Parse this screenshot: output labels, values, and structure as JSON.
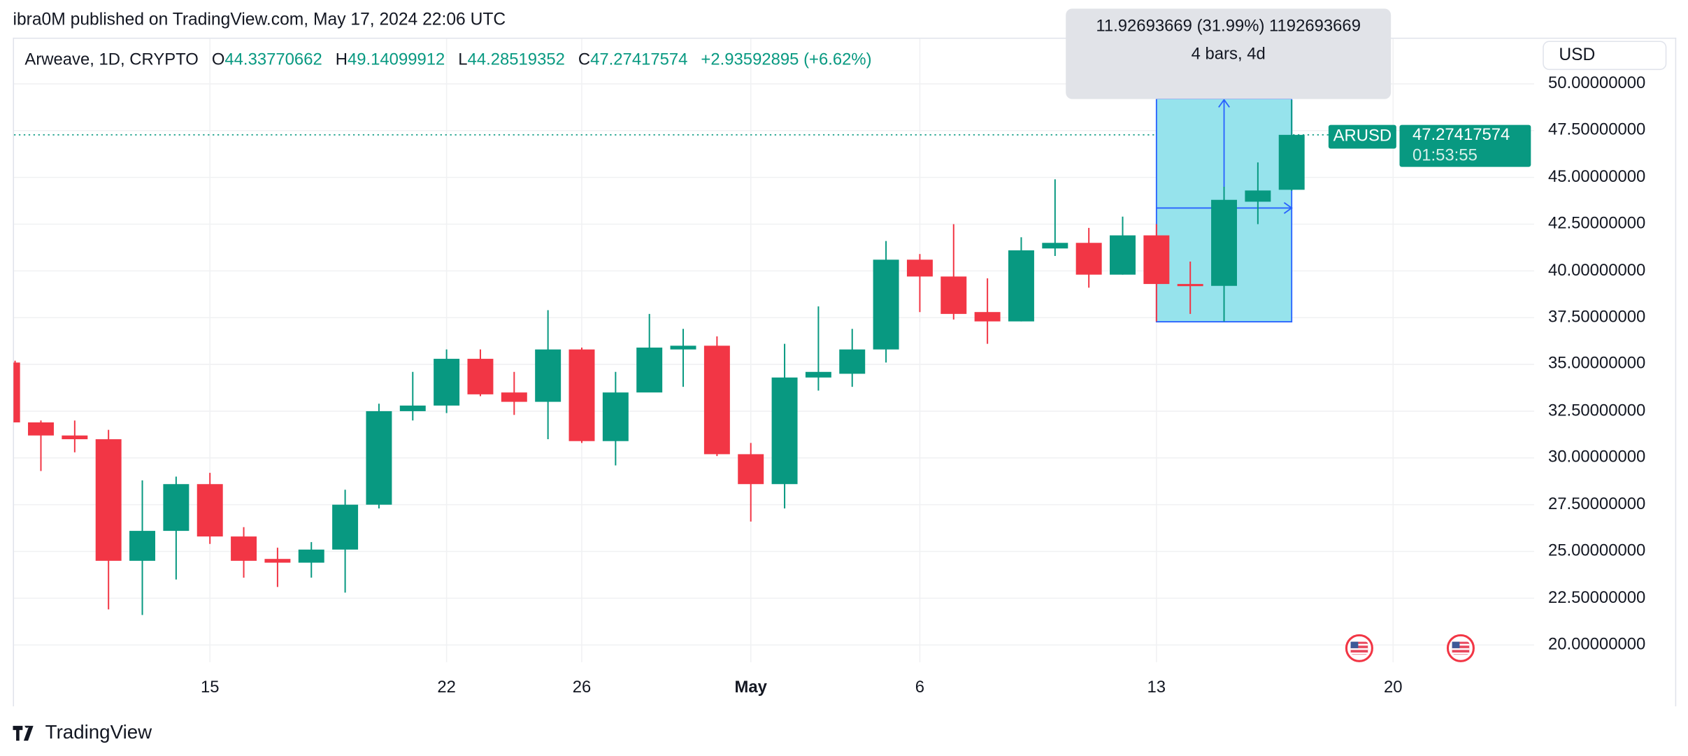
{
  "published": "ibra0M published on TradingView.com, May 17, 2024 22:06 UTC",
  "legend": {
    "symbol_desc": "Arweave, 1D, CRYPTO",
    "open_label": "O",
    "open": "44.33770662",
    "high_label": "H",
    "high": "49.14099912",
    "low_label": "L",
    "low": "44.28519352",
    "close_label": "C",
    "close": "47.27417574",
    "change": "+2.93592895 (+6.62%)"
  },
  "currency_button": "USD",
  "price_tag": {
    "symbol": "ARUSD",
    "price": "47.27417574",
    "countdown": "01:53:55"
  },
  "measure_tooltip": {
    "line1": "11.92693669 (31.99%) 1192693669",
    "line2": "4 bars, 4d"
  },
  "brand": "TradingView",
  "colors": {
    "up": "#089981",
    "down": "#F23645",
    "measure_fill": "#96E3EC",
    "measure_line": "#2962FF",
    "grid": "#F0F1F3"
  },
  "icons": {
    "holiday": "us-flag-icon",
    "logo": "tradingview-logo-icon"
  },
  "chart_data": {
    "type": "candlestick",
    "title": "",
    "y_axis": {
      "ticks": [
        "20.00000000",
        "22.50000000",
        "25.00000000",
        "27.50000000",
        "30.00000000",
        "32.50000000",
        "35.00000000",
        "37.50000000",
        "40.00000000",
        "42.50000000",
        "45.00000000",
        "47.50000000",
        "50.00000000"
      ],
      "range": [
        18.5,
        50.5
      ],
      "side": "right"
    },
    "x_axis": {
      "ticks": [
        {
          "date": "2024-04-15",
          "label": "15"
        },
        {
          "date": "2024-04-22",
          "label": "22"
        },
        {
          "date": "2024-04-26",
          "label": "26"
        },
        {
          "date": "2024-05-01",
          "label": "May",
          "bold": true
        },
        {
          "date": "2024-05-06",
          "label": "6"
        },
        {
          "date": "2024-05-13",
          "label": "13"
        },
        {
          "date": "2024-05-20",
          "label": "20"
        }
      ]
    },
    "grid": true,
    "last_price": 47.27417574,
    "candles": [
      {
        "d": "2024-04-09",
        "o": 35.1,
        "h": 35.2,
        "l": 31.9,
        "c": 31.9
      },
      {
        "d": "2024-04-10",
        "o": 31.9,
        "h": 32.0,
        "l": 29.3,
        "c": 31.2
      },
      {
        "d": "2024-04-11",
        "o": 31.2,
        "h": 32.0,
        "l": 30.3,
        "c": 31.0
      },
      {
        "d": "2024-04-12",
        "o": 31.0,
        "h": 31.5,
        "l": 21.9,
        "c": 24.5
      },
      {
        "d": "2024-04-13",
        "o": 24.5,
        "h": 28.8,
        "l": 21.6,
        "c": 26.1
      },
      {
        "d": "2024-04-14",
        "o": 26.1,
        "h": 29.0,
        "l": 23.5,
        "c": 28.6
      },
      {
        "d": "2024-04-15",
        "o": 28.6,
        "h": 29.2,
        "l": 25.4,
        "c": 25.8
      },
      {
        "d": "2024-04-16",
        "o": 25.8,
        "h": 26.3,
        "l": 23.6,
        "c": 24.5
      },
      {
        "d": "2024-04-17",
        "o": 24.6,
        "h": 25.2,
        "l": 23.1,
        "c": 24.4
      },
      {
        "d": "2024-04-18",
        "o": 24.4,
        "h": 25.5,
        "l": 23.6,
        "c": 25.1
      },
      {
        "d": "2024-04-19",
        "o": 25.1,
        "h": 28.3,
        "l": 22.8,
        "c": 27.5
      },
      {
        "d": "2024-04-20",
        "o": 27.5,
        "h": 32.9,
        "l": 27.3,
        "c": 32.5
      },
      {
        "d": "2024-04-21",
        "o": 32.5,
        "h": 34.6,
        "l": 32.0,
        "c": 32.8
      },
      {
        "d": "2024-04-22",
        "o": 32.8,
        "h": 35.8,
        "l": 32.4,
        "c": 35.3
      },
      {
        "d": "2024-04-23",
        "o": 35.3,
        "h": 35.8,
        "l": 33.3,
        "c": 33.4
      },
      {
        "d": "2024-04-24",
        "o": 33.5,
        "h": 34.6,
        "l": 32.3,
        "c": 33.0
      },
      {
        "d": "2024-04-25",
        "o": 33.0,
        "h": 37.9,
        "l": 31.0,
        "c": 35.8
      },
      {
        "d": "2024-04-26",
        "o": 35.8,
        "h": 35.9,
        "l": 30.8,
        "c": 30.9
      },
      {
        "d": "2024-04-27",
        "o": 30.9,
        "h": 34.6,
        "l": 29.6,
        "c": 33.5
      },
      {
        "d": "2024-04-28",
        "o": 33.5,
        "h": 37.7,
        "l": 33.8,
        "c": 35.9
      },
      {
        "d": "2024-04-29",
        "o": 35.8,
        "h": 36.9,
        "l": 33.8,
        "c": 36.0
      },
      {
        "d": "2024-04-30",
        "o": 36.0,
        "h": 36.5,
        "l": 30.1,
        "c": 30.2
      },
      {
        "d": "2024-05-01",
        "o": 30.2,
        "h": 30.8,
        "l": 26.6,
        "c": 28.6
      },
      {
        "d": "2024-05-02",
        "o": 28.6,
        "h": 36.1,
        "l": 27.3,
        "c": 34.3
      },
      {
        "d": "2024-05-03",
        "o": 34.3,
        "h": 38.1,
        "l": 33.6,
        "c": 34.6
      },
      {
        "d": "2024-05-04",
        "o": 34.5,
        "h": 36.9,
        "l": 33.8,
        "c": 35.8
      },
      {
        "d": "2024-05-05",
        "o": 35.8,
        "h": 41.6,
        "l": 35.1,
        "c": 40.6
      },
      {
        "d": "2024-05-06",
        "o": 40.6,
        "h": 40.9,
        "l": 37.8,
        "c": 39.7
      },
      {
        "d": "2024-05-07",
        "o": 39.7,
        "h": 42.5,
        "l": 37.4,
        "c": 37.7
      },
      {
        "d": "2024-05-08",
        "o": 37.8,
        "h": 39.6,
        "l": 36.1,
        "c": 37.3
      },
      {
        "d": "2024-05-09",
        "o": 37.3,
        "h": 41.8,
        "l": 37.3,
        "c": 41.1
      },
      {
        "d": "2024-05-10",
        "o": 41.2,
        "h": 44.9,
        "l": 40.8,
        "c": 41.5
      },
      {
        "d": "2024-05-11",
        "o": 41.5,
        "h": 42.3,
        "l": 39.1,
        "c": 39.8
      },
      {
        "d": "2024-05-12",
        "o": 39.8,
        "h": 42.9,
        "l": 39.8,
        "c": 41.9
      },
      {
        "d": "2024-05-13",
        "o": 41.9,
        "h": 42.5,
        "l": 37.3,
        "c": 39.3
      },
      {
        "d": "2024-05-14",
        "o": 39.3,
        "h": 40.5,
        "l": 37.7,
        "c": 39.2
      },
      {
        "d": "2024-05-15",
        "o": 39.2,
        "h": 44.5,
        "l": 37.3,
        "c": 43.8
      },
      {
        "d": "2024-05-16",
        "o": 43.7,
        "h": 45.8,
        "l": 42.5,
        "c": 44.3
      },
      {
        "d": "2024-05-17",
        "o": 44.33770662,
        "h": 49.14099912,
        "l": 44.28519352,
        "c": 47.27417574
      }
    ],
    "measure": {
      "from_date": "2024-05-13",
      "to_date": "2024-05-17",
      "from_price": 37.28,
      "to_price": 49.21
    },
    "holidays": [
      "2024-05-19",
      "2024-05-22"
    ]
  }
}
